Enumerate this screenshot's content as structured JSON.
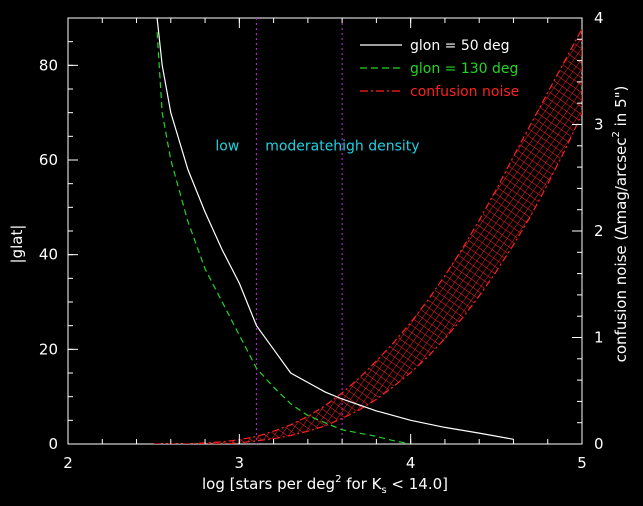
{
  "chart_data": {
    "type": "line",
    "xlabel_parts": {
      "pre": "log [stars per deg",
      "sup": "2",
      "mid": " for K",
      "sub": "s",
      "post": " < 14.0]"
    },
    "ylabel_left": "|glat|",
    "ylabel_right_parts": {
      "pre": "confusion noise (Δmag/arcsec",
      "sup": "2",
      "post": " in 5\")"
    },
    "xlim": [
      2,
      5
    ],
    "ylim_left": [
      0,
      90
    ],
    "ylim_right": [
      0,
      4
    ],
    "x_ticks": [
      "2",
      "3",
      "4",
      "5"
    ],
    "y_ticks_left": [
      "0",
      "20",
      "40",
      "60",
      "80"
    ],
    "y_ticks_right": [
      "0",
      "1",
      "2",
      "3",
      "4"
    ],
    "vlines": [
      3.1,
      3.6
    ],
    "regions": [
      {
        "label": "low",
        "x": 2.93
      },
      {
        "label": "moderate",
        "x": 3.35
      },
      {
        "label": "high density",
        "x": 3.8
      }
    ],
    "region_label_y": 62,
    "series": [
      {
        "name": "glon = 50 deg",
        "color": "#ffffff",
        "style": "solid",
        "axis": "left",
        "x": [
          2.52,
          2.55,
          2.6,
          2.7,
          2.8,
          2.9,
          3.0,
          3.1,
          3.2,
          3.3,
          3.4,
          3.5,
          3.6,
          3.8,
          4.0,
          4.2,
          4.4,
          4.6
        ],
        "y": [
          90,
          80,
          70,
          58,
          49,
          41,
          34,
          25,
          20,
          15,
          13,
          11,
          9.5,
          7,
          5,
          3.5,
          2.3,
          1
        ]
      },
      {
        "name": "glon = 130 deg",
        "color": "#22d622",
        "style": "dashed",
        "axis": "left",
        "x": [
          2.52,
          2.55,
          2.6,
          2.7,
          2.8,
          2.9,
          3.0,
          3.1,
          3.2,
          3.3,
          3.4,
          3.5,
          3.6,
          3.7,
          3.8,
          3.9,
          4.0
        ],
        "y": [
          87,
          70,
          60,
          47,
          37,
          30,
          23,
          16,
          12,
          8.5,
          6,
          4.5,
          3,
          2.3,
          1.6,
          0.7,
          0
        ]
      },
      {
        "name": "confusion noise",
        "color": "#ff2020",
        "style": "dashdot",
        "axis": "right",
        "x": [
          2.5,
          2.7,
          2.8,
          2.9,
          3.0,
          3.1,
          3.2,
          3.3,
          3.4,
          3.5,
          3.6,
          3.7,
          3.8,
          3.9,
          4.0,
          4.1,
          4.2,
          4.3,
          4.4,
          4.5,
          4.6,
          4.7,
          4.8,
          4.9,
          5.0
        ],
        "y_low": [
          0,
          0,
          0,
          0,
          0.01,
          0.03,
          0.05,
          0.08,
          0.12,
          0.17,
          0.24,
          0.32,
          0.42,
          0.54,
          0.67,
          0.82,
          0.99,
          1.18,
          1.39,
          1.62,
          1.87,
          2.14,
          2.44,
          2.76,
          3.1
        ],
        "y_high": [
          0,
          0,
          0.01,
          0.02,
          0.04,
          0.07,
          0.12,
          0.18,
          0.26,
          0.36,
          0.48,
          0.62,
          0.78,
          0.95,
          1.14,
          1.35,
          1.58,
          1.83,
          2.1,
          2.39,
          2.7,
          3.0,
          3.3,
          3.6,
          3.9
        ]
      }
    ]
  }
}
